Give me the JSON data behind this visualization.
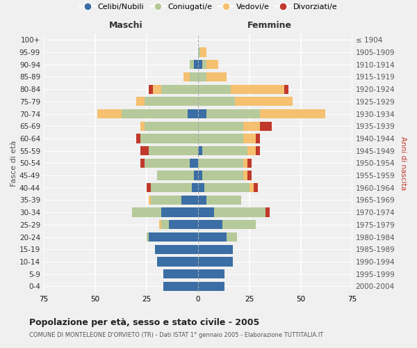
{
  "age_groups": [
    "100+",
    "95-99",
    "90-94",
    "85-89",
    "80-84",
    "75-79",
    "70-74",
    "65-69",
    "60-64",
    "55-59",
    "50-54",
    "45-49",
    "40-44",
    "35-39",
    "30-34",
    "25-29",
    "20-24",
    "15-19",
    "10-14",
    "5-9",
    "0-4"
  ],
  "birth_years": [
    "≤ 1904",
    "1905-1909",
    "1910-1914",
    "1915-1919",
    "1920-1924",
    "1925-1929",
    "1930-1934",
    "1935-1939",
    "1940-1944",
    "1945-1949",
    "1950-1954",
    "1955-1959",
    "1960-1964",
    "1965-1969",
    "1970-1974",
    "1975-1979",
    "1980-1984",
    "1985-1989",
    "1990-1994",
    "1995-1999",
    "2000-2004"
  ],
  "males": {
    "celibi": [
      0,
      0,
      2,
      0,
      0,
      0,
      5,
      0,
      0,
      0,
      4,
      2,
      3,
      8,
      18,
      14,
      24,
      21,
      20,
      17,
      17
    ],
    "coniugati": [
      0,
      0,
      2,
      4,
      18,
      26,
      32,
      26,
      28,
      24,
      22,
      18,
      20,
      15,
      14,
      4,
      1,
      0,
      0,
      0,
      0
    ],
    "vedovi": [
      0,
      0,
      0,
      3,
      4,
      4,
      12,
      2,
      0,
      0,
      0,
      0,
      0,
      1,
      0,
      1,
      0,
      0,
      0,
      0,
      0
    ],
    "divorziati": [
      0,
      0,
      0,
      0,
      2,
      0,
      0,
      0,
      2,
      4,
      2,
      0,
      2,
      0,
      0,
      0,
      0,
      0,
      0,
      0,
      0
    ]
  },
  "females": {
    "nubili": [
      0,
      0,
      2,
      0,
      0,
      0,
      4,
      0,
      0,
      2,
      0,
      2,
      3,
      4,
      8,
      12,
      14,
      17,
      17,
      13,
      13
    ],
    "coniugate": [
      0,
      1,
      2,
      4,
      16,
      18,
      26,
      22,
      22,
      22,
      22,
      20,
      22,
      17,
      25,
      16,
      5,
      0,
      0,
      0,
      0
    ],
    "vedove": [
      0,
      3,
      6,
      10,
      26,
      28,
      32,
      8,
      6,
      4,
      2,
      2,
      2,
      0,
      0,
      0,
      0,
      0,
      0,
      0,
      0
    ],
    "divorziate": [
      0,
      0,
      0,
      0,
      2,
      0,
      0,
      6,
      2,
      2,
      2,
      2,
      2,
      0,
      2,
      0,
      0,
      0,
      0,
      0,
      0
    ]
  },
  "color_celibi": "#3a6ea5",
  "color_coniugati": "#b5c99a",
  "color_vedovi": "#f5c06f",
  "color_divorziati": "#c0392b",
  "bg_color": "#f0f0f0",
  "grid_color": "#ffffff",
  "title": "Popolazione per età, sesso e stato civile - 2005",
  "subtitle": "COMUNE DI MONTELEONE D'ORVIETO (TR) - Dati ISTAT 1° gennaio 2005 - Elaborazione TUTTITALIA.IT",
  "xlabel_maschi": "Maschi",
  "xlabel_femmine": "Femmine",
  "ylabel_left": "Fasce di età",
  "ylabel_right": "Anni di nascita",
  "xlim": 75,
  "legend_labels": [
    "Celibi/Nubili",
    "Coniugati/e",
    "Vedovi/e",
    "Divorziati/e"
  ]
}
